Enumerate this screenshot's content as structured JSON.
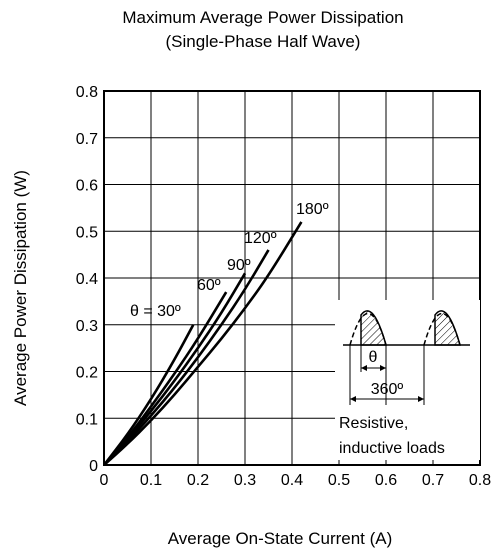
{
  "chart_data": {
    "type": "line",
    "title": "Maximum Average Power Dissipation",
    "subtitle": "(Single-Phase Half Wave)",
    "xlabel": "Average On-State Current  (A)",
    "ylabel": "Average Power Dissipation  (W)",
    "xlim": [
      0,
      0.8
    ],
    "ylim": [
      0,
      0.8
    ],
    "grid": true,
    "x_ticks": [
      "0",
      "0.1",
      "0.2",
      "0.3",
      "0.4",
      "0.5",
      "0.6",
      "0.7",
      "0.8"
    ],
    "y_ticks": [
      "0",
      "0.1",
      "0.2",
      "0.3",
      "0.4",
      "0.5",
      "0.6",
      "0.7",
      "0.8"
    ],
    "series": [
      {
        "name": "θ = 30º",
        "x": [
          0,
          0.05,
          0.1,
          0.15,
          0.19
        ],
        "y": [
          0,
          0.065,
          0.14,
          0.225,
          0.3
        ]
      },
      {
        "name": "60º",
        "x": [
          0,
          0.05,
          0.1,
          0.15,
          0.2,
          0.26
        ],
        "y": [
          0,
          0.058,
          0.125,
          0.195,
          0.27,
          0.37
        ]
      },
      {
        "name": "90º",
        "x": [
          0,
          0.05,
          0.1,
          0.15,
          0.2,
          0.25,
          0.3
        ],
        "y": [
          0,
          0.055,
          0.115,
          0.18,
          0.25,
          0.325,
          0.41
        ]
      },
      {
        "name": "120º",
        "x": [
          0,
          0.05,
          0.1,
          0.15,
          0.2,
          0.25,
          0.3,
          0.35
        ],
        "y": [
          0,
          0.05,
          0.105,
          0.165,
          0.23,
          0.3,
          0.375,
          0.46
        ]
      },
      {
        "name": "180º",
        "x": [
          0,
          0.05,
          0.1,
          0.15,
          0.2,
          0.25,
          0.3,
          0.35,
          0.42
        ],
        "y": [
          0,
          0.045,
          0.095,
          0.15,
          0.21,
          0.27,
          0.335,
          0.405,
          0.52
        ]
      }
    ],
    "curve_labels": [
      "θ = 30º",
      "60º",
      "90º",
      "120º",
      "180º"
    ],
    "inset": {
      "theta_label": "θ",
      "period_label": "360º",
      "note_line1": "Resistive,",
      "note_line2": "inductive loads"
    }
  }
}
